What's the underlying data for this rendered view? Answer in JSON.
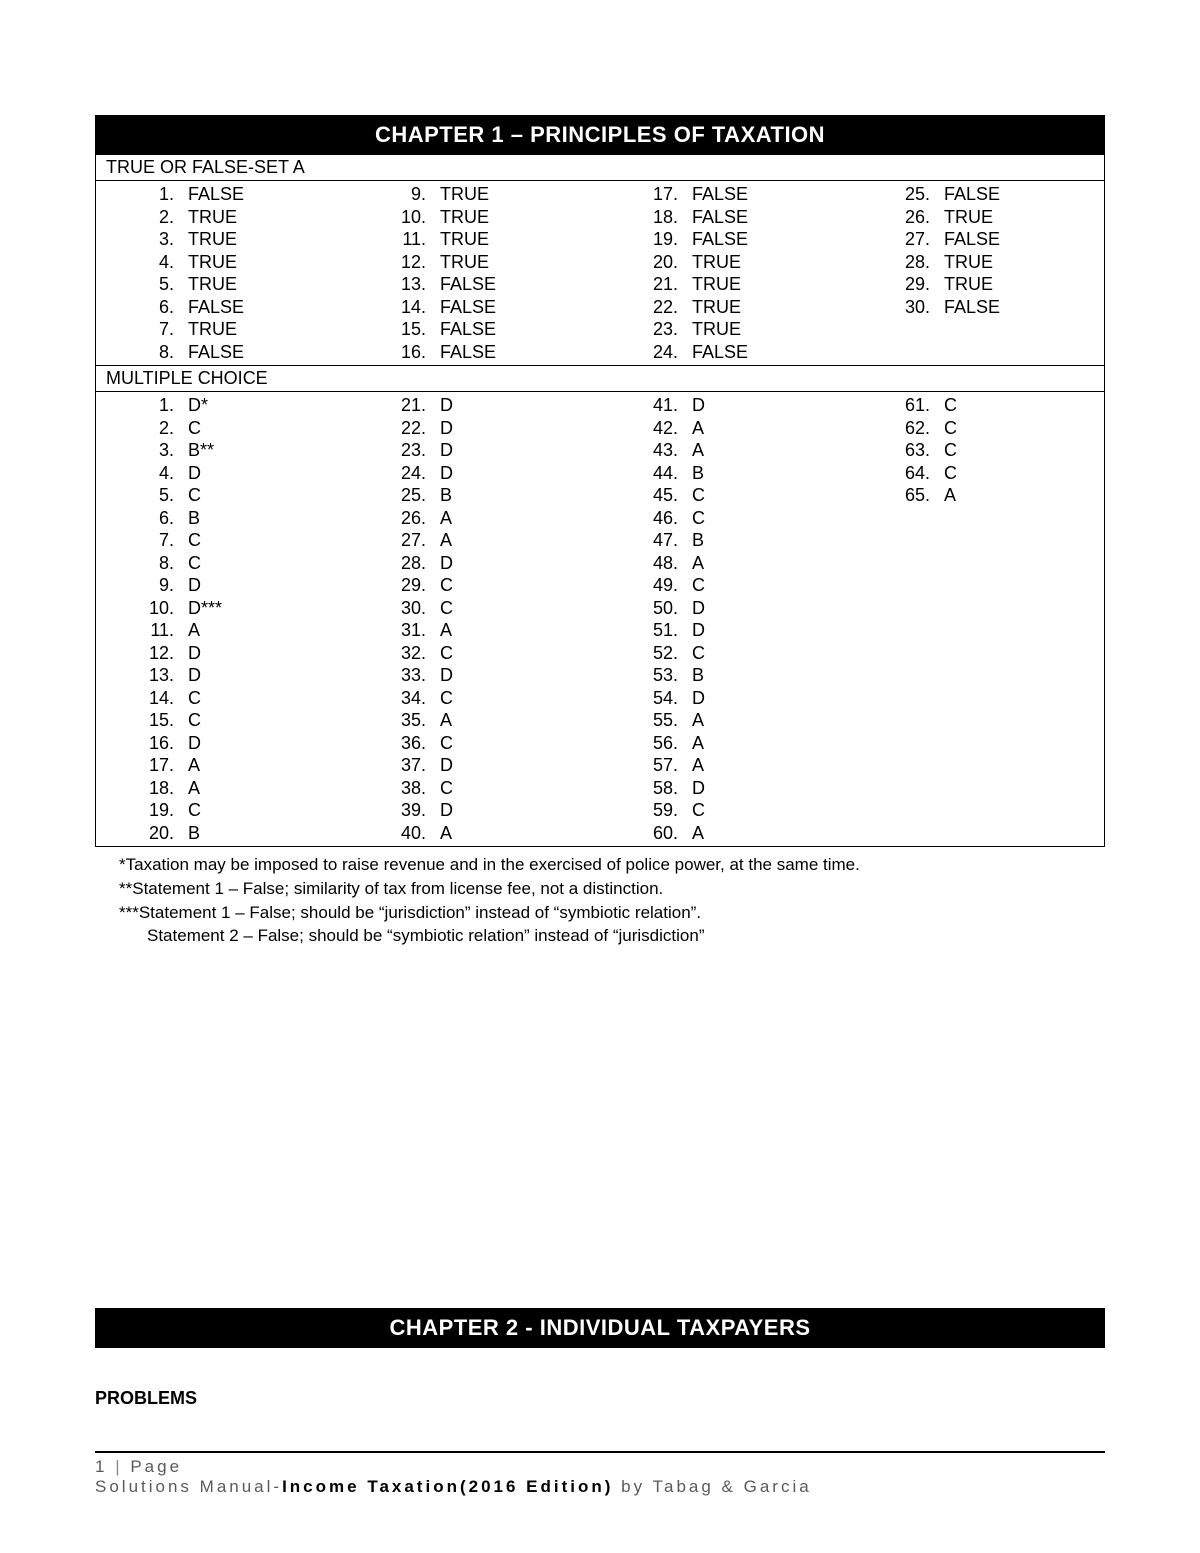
{
  "chapter1": {
    "title": "CHAPTER 1 – PRINCIPLES OF TAXATION",
    "tf": {
      "label": "TRUE OR FALSE-SET A",
      "columns": [
        [
          {
            "n": "1",
            "v": "FALSE"
          },
          {
            "n": "2",
            "v": "TRUE"
          },
          {
            "n": "3",
            "v": "TRUE"
          },
          {
            "n": "4",
            "v": "TRUE"
          },
          {
            "n": "5",
            "v": "TRUE"
          },
          {
            "n": "6",
            "v": "FALSE"
          },
          {
            "n": "7",
            "v": "TRUE"
          },
          {
            "n": "8",
            "v": "FALSE"
          }
        ],
        [
          {
            "n": "9",
            "v": "TRUE"
          },
          {
            "n": "10",
            "v": "TRUE"
          },
          {
            "n": "11",
            "v": "TRUE"
          },
          {
            "n": "12",
            "v": "TRUE"
          },
          {
            "n": "13",
            "v": "FALSE"
          },
          {
            "n": "14",
            "v": "FALSE"
          },
          {
            "n": "15",
            "v": "FALSE"
          },
          {
            "n": "16",
            "v": "FALSE"
          }
        ],
        [
          {
            "n": "17",
            "v": "FALSE"
          },
          {
            "n": "18",
            "v": "FALSE"
          },
          {
            "n": "19",
            "v": "FALSE"
          },
          {
            "n": "20",
            "v": "TRUE"
          },
          {
            "n": "21",
            "v": "TRUE"
          },
          {
            "n": "22",
            "v": "TRUE"
          },
          {
            "n": "23",
            "v": "TRUE"
          },
          {
            "n": "24",
            "v": "FALSE"
          }
        ],
        [
          {
            "n": "25",
            "v": "FALSE"
          },
          {
            "n": "26",
            "v": "TRUE"
          },
          {
            "n": "27",
            "v": "FALSE"
          },
          {
            "n": "28",
            "v": "TRUE"
          },
          {
            "n": "29",
            "v": "TRUE"
          },
          {
            "n": "30",
            "v": "FALSE"
          }
        ]
      ]
    },
    "mc": {
      "label": "MULTIPLE CHOICE",
      "columns": [
        [
          {
            "n": "1",
            "v": "D*"
          },
          {
            "n": "2",
            "v": "C"
          },
          {
            "n": "3",
            "v": "B**"
          },
          {
            "n": "4",
            "v": "D"
          },
          {
            "n": "5",
            "v": "C"
          },
          {
            "n": "6",
            "v": "B"
          },
          {
            "n": "7",
            "v": "C"
          },
          {
            "n": "8",
            "v": "C"
          },
          {
            "n": "9",
            "v": "D"
          },
          {
            "n": "10",
            "v": "D***"
          },
          {
            "n": "11",
            "v": "A"
          },
          {
            "n": "12",
            "v": "D"
          },
          {
            "n": "13",
            "v": "D"
          },
          {
            "n": "14",
            "v": "C"
          },
          {
            "n": "15",
            "v": "C"
          },
          {
            "n": "16",
            "v": "D"
          },
          {
            "n": "17",
            "v": "A"
          },
          {
            "n": "18",
            "v": "A"
          },
          {
            "n": "19",
            "v": "C"
          },
          {
            "n": "20",
            "v": "B"
          }
        ],
        [
          {
            "n": "21",
            "v": "D"
          },
          {
            "n": "22",
            "v": "D"
          },
          {
            "n": "23",
            "v": "D"
          },
          {
            "n": "24",
            "v": "D"
          },
          {
            "n": "25",
            "v": "B"
          },
          {
            "n": "26",
            "v": "A"
          },
          {
            "n": "27",
            "v": "A"
          },
          {
            "n": "28",
            "v": "D"
          },
          {
            "n": "29",
            "v": "C"
          },
          {
            "n": "30",
            "v": "C"
          },
          {
            "n": "31",
            "v": "A"
          },
          {
            "n": "32",
            "v": "C"
          },
          {
            "n": "33",
            "v": "D"
          },
          {
            "n": "34",
            "v": "C"
          },
          {
            "n": "35",
            "v": "A"
          },
          {
            "n": "36",
            "v": "C"
          },
          {
            "n": "37",
            "v": "D"
          },
          {
            "n": "38",
            "v": "C"
          },
          {
            "n": "39",
            "v": "D"
          },
          {
            "n": "40",
            "v": "A"
          }
        ],
        [
          {
            "n": "41",
            "v": "D"
          },
          {
            "n": "42",
            "v": "A"
          },
          {
            "n": "43",
            "v": "A"
          },
          {
            "n": "44",
            "v": "B"
          },
          {
            "n": "45",
            "v": "C"
          },
          {
            "n": "46",
            "v": "C"
          },
          {
            "n": "47",
            "v": "B"
          },
          {
            "n": "48",
            "v": "A"
          },
          {
            "n": "49",
            "v": "C"
          },
          {
            "n": "50",
            "v": "D"
          },
          {
            "n": "51",
            "v": "D"
          },
          {
            "n": "52",
            "v": "C"
          },
          {
            "n": "53",
            "v": "B"
          },
          {
            "n": "54",
            "v": "D"
          },
          {
            "n": "55",
            "v": "A"
          },
          {
            "n": "56",
            "v": "A"
          },
          {
            "n": "57",
            "v": "A"
          },
          {
            "n": "58",
            "v": "D"
          },
          {
            "n": "59",
            "v": "C"
          },
          {
            "n": "60",
            "v": "A"
          }
        ],
        [
          {
            "n": "61",
            "v": "C"
          },
          {
            "n": "62",
            "v": "C"
          },
          {
            "n": "63",
            "v": "C"
          },
          {
            "n": "64",
            "v": "C"
          },
          {
            "n": "65",
            "v": "A"
          }
        ]
      ]
    },
    "notes": [
      "*Taxation may be imposed to raise revenue and in the exercised of police power, at the same time.",
      "**Statement 1 – False; similarity of tax from license fee, not a distinction.",
      "***Statement 1 – False; should be “jurisdiction” instead of “symbiotic relation”.",
      "Statement 2 – False; should be “symbiotic relation” instead of “jurisdiction”"
    ]
  },
  "chapter2": {
    "title": "CHAPTER 2 -  INDIVIDUAL TAXPAYERS",
    "problems_label": "PROBLEMS"
  },
  "footer": {
    "page_label": "1",
    "page_word": "Page",
    "line2_prefix": "Solutions Manual-",
    "line2_bold": "Income Taxation(2016 Edition)",
    "line2_suffix": " by Tabag & Garcia"
  }
}
